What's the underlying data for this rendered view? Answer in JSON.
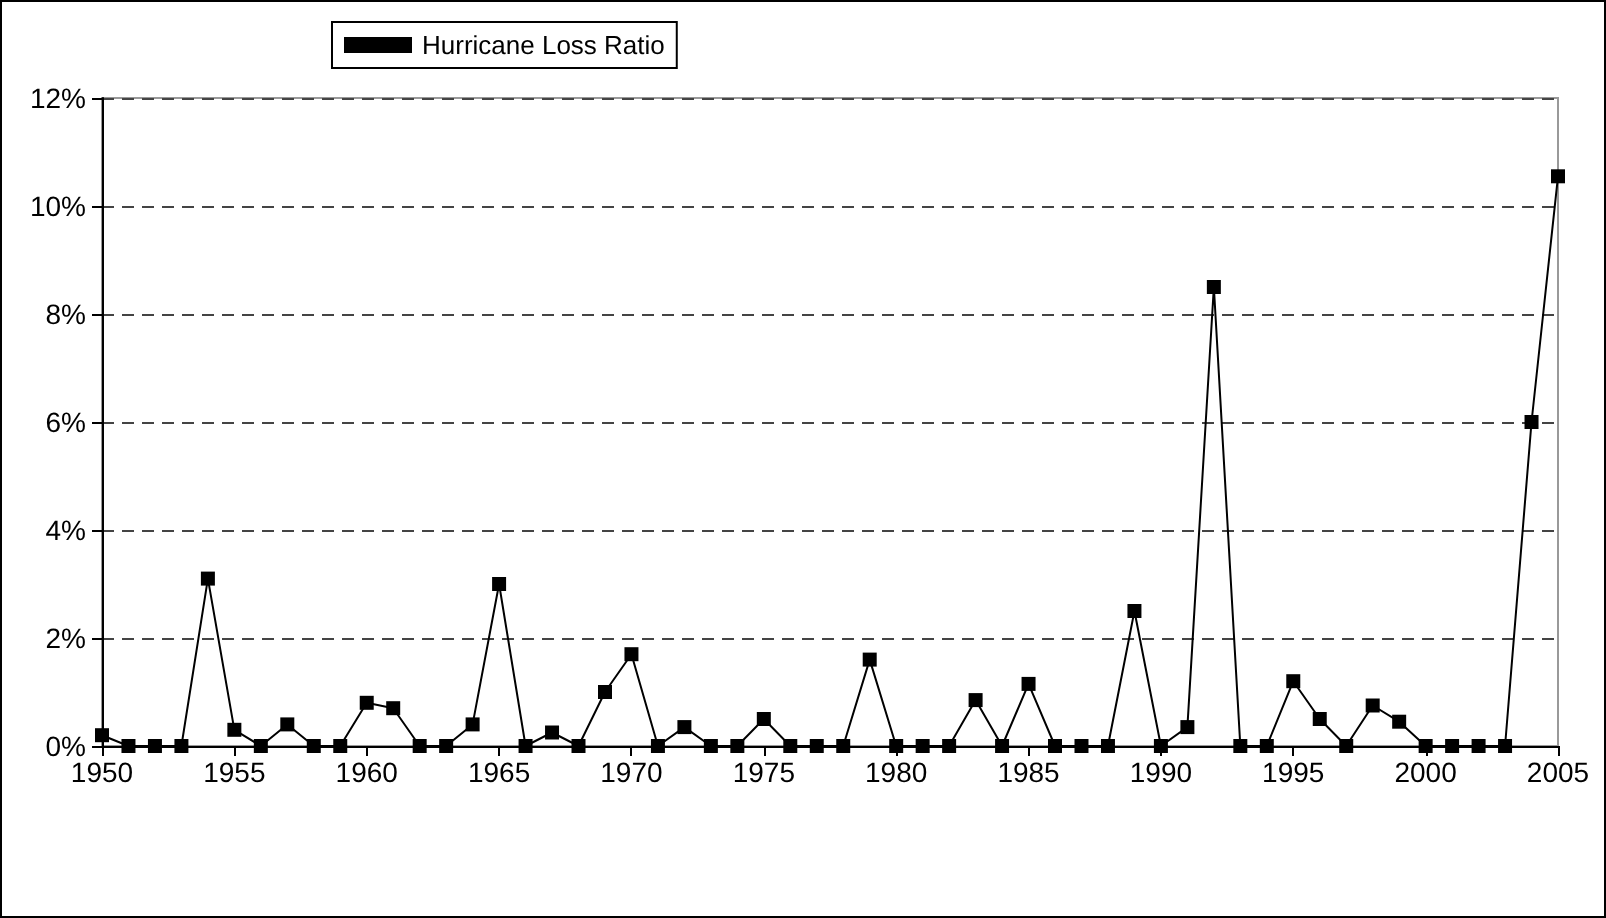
{
  "chart_data": {
    "type": "line",
    "x": [
      1950,
      1951,
      1952,
      1953,
      1954,
      1955,
      1956,
      1957,
      1958,
      1959,
      1960,
      1961,
      1962,
      1963,
      1964,
      1965,
      1966,
      1967,
      1968,
      1969,
      1970,
      1971,
      1972,
      1973,
      1974,
      1975,
      1976,
      1977,
      1978,
      1979,
      1980,
      1981,
      1982,
      1983,
      1984,
      1985,
      1986,
      1987,
      1988,
      1989,
      1990,
      1991,
      1992,
      1993,
      1994,
      1995,
      1996,
      1997,
      1998,
      1999,
      2000,
      2001,
      2002,
      2003,
      2004,
      2005
    ],
    "series": [
      {
        "name": "Hurricane Loss Ratio",
        "color": "#000000",
        "values": [
          0.2,
          0,
          0,
          0,
          3.1,
          0.3,
          0,
          0.4,
          0,
          0,
          0.8,
          0.7,
          0,
          0,
          0.4,
          3.0,
          0,
          0.25,
          0,
          1.0,
          1.7,
          0,
          0.35,
          0,
          0,
          0.5,
          0,
          0,
          0,
          1.6,
          0,
          0,
          0,
          0.85,
          0,
          1.15,
          0,
          0,
          0,
          2.5,
          0,
          0.35,
          8.5,
          0,
          0,
          1.2,
          0.5,
          0,
          0.75,
          0.45,
          0,
          0,
          0,
          0,
          6.0,
          10.55
        ]
      }
    ],
    "xlim": [
      1950,
      2005
    ],
    "xticks": [
      1950,
      1955,
      1960,
      1965,
      1970,
      1975,
      1980,
      1985,
      1990,
      1995,
      2000,
      2005
    ],
    "ylim": [
      0,
      12
    ],
    "yticks": [
      {
        "value": 0,
        "label": "0%"
      },
      {
        "value": 2,
        "label": "2%"
      },
      {
        "value": 4,
        "label": "4%"
      },
      {
        "value": 6,
        "label": "6%"
      },
      {
        "value": 8,
        "label": "8%"
      },
      {
        "value": 10,
        "label": "10%"
      },
      {
        "value": 12,
        "label": "12%"
      }
    ],
    "grid": "y",
    "legend": "top",
    "marker": "square",
    "line_style": "solid"
  }
}
